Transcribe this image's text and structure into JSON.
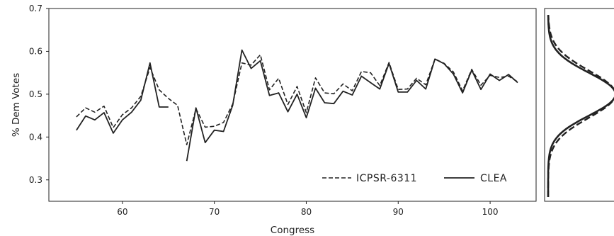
{
  "chart_data": [
    {
      "type": "line",
      "xlabel": "Congress",
      "ylabel": "% Dem Votes",
      "xlim": [
        52,
        105
      ],
      "ylim": [
        0.25,
        0.7
      ],
      "xticks": [
        "60",
        "70",
        "80",
        "90",
        "100"
      ],
      "yticks": [
        "0.3",
        "0.4",
        "0.5",
        "0.6",
        "0.7"
      ],
      "grid": false,
      "legend": "bottom-right",
      "series": [
        {
          "name": "ICPSR-6311",
          "style": "dashed",
          "color": "#222222",
          "points": [
            [
              55,
              0.447
            ],
            [
              56,
              0.468
            ],
            [
              57,
              0.458
            ],
            [
              58,
              0.472
            ],
            [
              59,
              0.422
            ],
            [
              60,
              0.452
            ],
            [
              61,
              0.468
            ],
            [
              62,
              0.495
            ],
            [
              63,
              0.562
            ],
            [
              64,
              0.51
            ],
            [
              65,
              0.49
            ],
            [
              66,
              0.474
            ],
            [
              67,
              0.382
            ],
            [
              68,
              0.466
            ],
            [
              69,
              0.423
            ],
            [
              70,
              0.425
            ],
            [
              71,
              0.434
            ],
            [
              72,
              0.477
            ],
            [
              73,
              0.573
            ],
            [
              74,
              0.568
            ],
            [
              75,
              0.592
            ],
            [
              76,
              0.51
            ],
            [
              77,
              0.537
            ],
            [
              78,
              0.476
            ],
            [
              79,
              0.518
            ],
            [
              80,
              0.457
            ],
            [
              81,
              0.538
            ],
            [
              82,
              0.503
            ],
            [
              83,
              0.501
            ],
            [
              84,
              0.524
            ],
            [
              85,
              0.508
            ],
            [
              86,
              0.553
            ],
            [
              87,
              0.55
            ],
            [
              88,
              0.52
            ],
            [
              89,
              0.574
            ],
            [
              90,
              0.511
            ],
            [
              91,
              0.512
            ],
            [
              92,
              0.537
            ],
            [
              93,
              0.522
            ],
            [
              94,
              0.582
            ],
            [
              95,
              0.572
            ],
            [
              96,
              0.552
            ],
            [
              97,
              0.508
            ],
            [
              98,
              0.558
            ],
            [
              99,
              0.521
            ],
            [
              100,
              0.544
            ],
            [
              101,
              0.539
            ],
            [
              102,
              0.542
            ],
            [
              103,
              0.529
            ]
          ]
        },
        {
          "name": "CLEA",
          "style": "solid",
          "color": "#222222",
          "segments": [
            [
              [
                55,
                0.416
              ],
              [
                56,
                0.449
              ],
              [
                57,
                0.44
              ],
              [
                58,
                0.457
              ],
              [
                59,
                0.409
              ],
              [
                60,
                0.44
              ],
              [
                61,
                0.458
              ],
              [
                62,
                0.486
              ],
              [
                63,
                0.573
              ],
              [
                64,
                0.47
              ],
              [
                65,
                0.47
              ]
            ],
            [
              [
                67,
                0.344
              ],
              [
                68,
                0.468
              ],
              [
                69,
                0.387
              ],
              [
                70,
                0.416
              ],
              [
                71,
                0.413
              ],
              [
                72,
                0.474
              ],
              [
                73,
                0.603
              ],
              [
                74,
                0.56
              ],
              [
                75,
                0.578
              ],
              [
                76,
                0.497
              ],
              [
                77,
                0.503
              ],
              [
                78,
                0.459
              ],
              [
                79,
                0.5
              ],
              [
                80,
                0.445
              ],
              [
                81,
                0.514
              ],
              [
                82,
                0.48
              ],
              [
                83,
                0.478
              ],
              [
                84,
                0.507
              ],
              [
                85,
                0.498
              ],
              [
                86,
                0.542
              ],
              [
                87,
                0.527
              ],
              [
                88,
                0.512
              ],
              [
                89,
                0.572
              ],
              [
                90,
                0.505
              ],
              [
                91,
                0.505
              ],
              [
                92,
                0.532
              ],
              [
                93,
                0.512
              ],
              [
                94,
                0.582
              ],
              [
                95,
                0.571
              ],
              [
                96,
                0.547
              ],
              [
                97,
                0.503
              ],
              [
                98,
                0.556
              ],
              [
                99,
                0.511
              ],
              [
                100,
                0.547
              ],
              [
                101,
                0.532
              ],
              [
                102,
                0.546
              ],
              [
                103,
                0.527
              ]
            ]
          ]
        }
      ]
    },
    {
      "type": "line",
      "orientation": "horizontal-density",
      "ylim": [
        0.25,
        0.7
      ],
      "grid": false,
      "series": [
        {
          "name": "ICPSR-6311",
          "style": "dashed",
          "color": "#222222",
          "mean": 0.5,
          "sd": 0.055
        },
        {
          "name": "CLEA",
          "style": "solid",
          "color": "#222222",
          "mean": 0.5,
          "sd": 0.05
        }
      ]
    }
  ]
}
